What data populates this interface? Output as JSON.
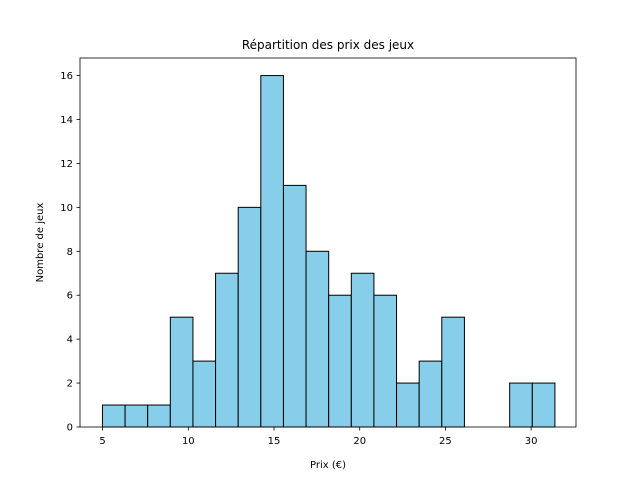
{
  "chart_data": {
    "type": "bar",
    "title": "Répartition des prix des jeux",
    "xlabel": "Prix (€)",
    "ylabel": "Nombre de jeux",
    "xlim": [
      3.68,
      32.62
    ],
    "ylim": [
      0,
      16.8
    ],
    "xticks": [
      5,
      10,
      15,
      20,
      25,
      30
    ],
    "yticks": [
      0,
      2,
      4,
      6,
      8,
      10,
      12,
      14,
      16
    ],
    "bins": [
      {
        "start": 4.99,
        "end": 6.31,
        "count": 1
      },
      {
        "start": 6.31,
        "end": 7.63,
        "count": 1
      },
      {
        "start": 7.63,
        "end": 8.95,
        "count": 1
      },
      {
        "start": 8.95,
        "end": 10.27,
        "count": 5
      },
      {
        "start": 10.27,
        "end": 11.59,
        "count": 3
      },
      {
        "start": 11.59,
        "end": 12.91,
        "count": 7
      },
      {
        "start": 12.91,
        "end": 14.23,
        "count": 10
      },
      {
        "start": 14.23,
        "end": 15.55,
        "count": 16
      },
      {
        "start": 15.55,
        "end": 16.87,
        "count": 11
      },
      {
        "start": 16.87,
        "end": 18.19,
        "count": 8
      },
      {
        "start": 18.19,
        "end": 19.51,
        "count": 6
      },
      {
        "start": 19.51,
        "end": 20.83,
        "count": 7
      },
      {
        "start": 20.83,
        "end": 22.15,
        "count": 6
      },
      {
        "start": 22.15,
        "end": 23.47,
        "count": 2
      },
      {
        "start": 23.47,
        "end": 24.79,
        "count": 3
      },
      {
        "start": 24.79,
        "end": 26.11,
        "count": 5
      },
      {
        "start": 26.11,
        "end": 27.43,
        "count": 0
      },
      {
        "start": 27.43,
        "end": 28.75,
        "count": 0
      },
      {
        "start": 28.75,
        "end": 30.07,
        "count": 2
      },
      {
        "start": 30.07,
        "end": 31.39,
        "count": 2
      }
    ],
    "bar_color": "#87ceeb",
    "edge_color": "#000000",
    "grid": false,
    "legend": "none"
  }
}
